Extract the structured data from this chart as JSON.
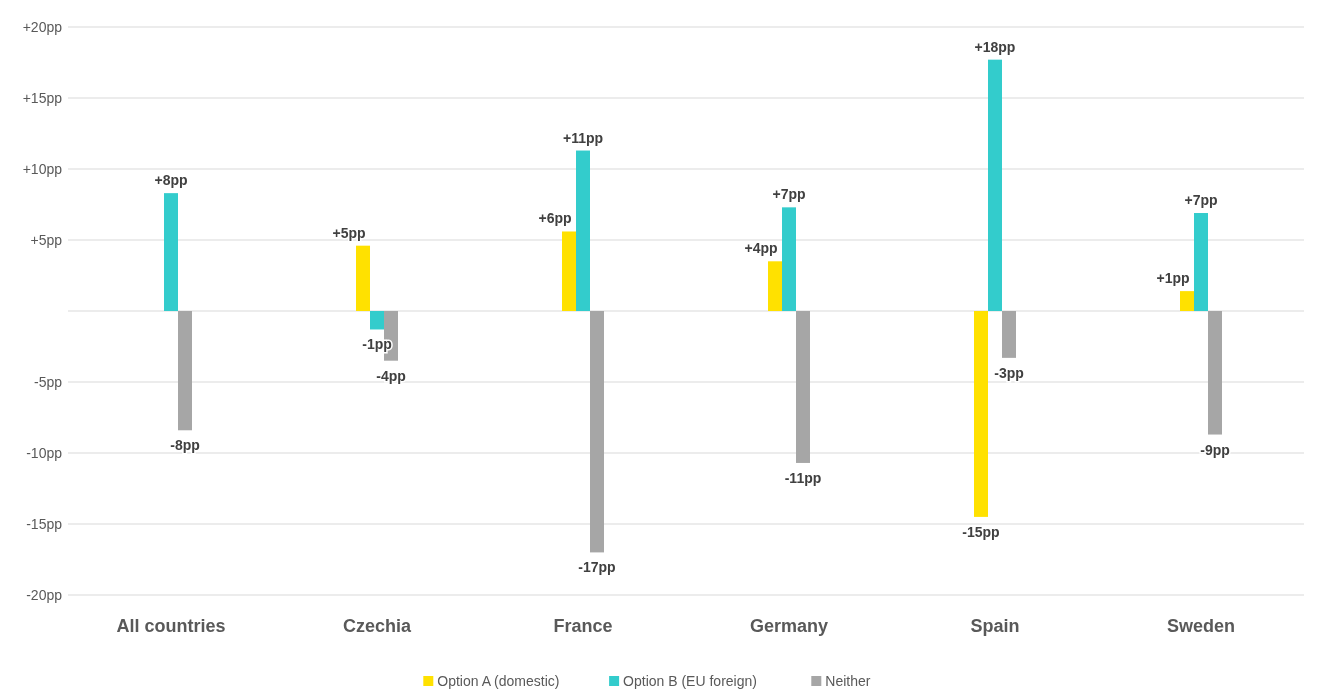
{
  "chart_data": {
    "type": "bar",
    "categories": [
      "All countries",
      "Czechia",
      "France",
      "Germany",
      "Spain",
      "Sweden"
    ],
    "series": [
      {
        "name": "Option A (domestic)",
        "color": "#ffe100",
        "values": [
          null,
          4.6,
          5.6,
          3.5,
          -14.5,
          1.4
        ],
        "value_labels": [
          null,
          "+5pp",
          "+6pp",
          "+4pp",
          "-15pp",
          "+1pp"
        ]
      },
      {
        "name": "Option B (EU foreign)",
        "color": "#33cccc",
        "values": [
          8.3,
          -1.3,
          11.3,
          7.3,
          17.7,
          6.9
        ],
        "value_labels": [
          "+8pp",
          "-1pp",
          "+11pp",
          "+7pp",
          "+18pp",
          "+7pp"
        ]
      },
      {
        "name": "Neither",
        "color": "#a6a6a6",
        "values": [
          -8.4,
          -3.5,
          -17.0,
          -10.7,
          -3.3,
          -8.7
        ],
        "value_labels": [
          "-8pp",
          "-4pp",
          "-17pp",
          "-11pp",
          "-3pp",
          "-9pp"
        ]
      }
    ],
    "ylim": [
      -20,
      20
    ],
    "yticks": [
      {
        "value": -20,
        "label": "-20pp"
      },
      {
        "value": -15,
        "label": "-15pp"
      },
      {
        "value": -10,
        "label": "-10pp"
      },
      {
        "value": -5,
        "label": "-5pp"
      },
      {
        "value": 0,
        "label": null
      },
      {
        "value": 5,
        "label": "+5pp"
      },
      {
        "value": 10,
        "label": "+10pp"
      },
      {
        "value": 15,
        "label": "+15pp"
      },
      {
        "value": 20,
        "label": "+20pp"
      }
    ],
    "grid": "y",
    "legend": "bottom"
  }
}
